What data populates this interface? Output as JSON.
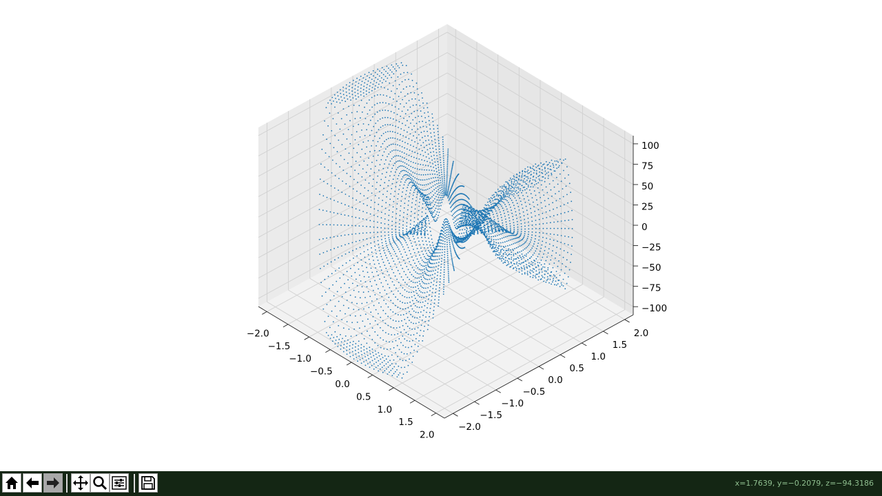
{
  "chart_data": {
    "type": "scatter",
    "title": "",
    "xlabel": "",
    "ylabel": "",
    "zlabel": "",
    "projection": "3d",
    "grid": true,
    "marker_color": "#1f77b4",
    "marker": "point",
    "xlim": [
      -2.2,
      2.2
    ],
    "ylim": [
      -2.2,
      2.2
    ],
    "zlim": [
      -110,
      110
    ],
    "x_ticks": [
      "−2.0",
      "−1.5",
      "−1.0",
      "−0.5",
      "0.0",
      "0.5",
      "1.0",
      "1.5",
      "2.0"
    ],
    "y_ticks": [
      "−2.0",
      "−1.5",
      "−1.0",
      "−0.5",
      "0.0",
      "0.5",
      "1.0",
      "1.5",
      "2.0"
    ],
    "z_ticks": [
      "−100",
      "−75",
      "−50",
      "−25",
      "0",
      "25",
      "50",
      "75",
      "100"
    ],
    "x_tick_values": [
      -2.0,
      -1.5,
      -1.0,
      -0.5,
      0.0,
      0.5,
      1.0,
      1.5,
      2.0
    ],
    "y_tick_values": [
      -2.0,
      -1.5,
      -1.0,
      -0.5,
      0.0,
      0.5,
      1.0,
      1.5,
      2.0
    ],
    "z_tick_values": [
      -100,
      -75,
      -50,
      -25,
      0,
      25,
      50,
      75,
      100
    ],
    "data_description_note": "",
    "data": {
      "polar_grid": {
        "r_range": [
          0.35,
          2.1
        ],
        "r_steps": 30,
        "theta_range_deg": [
          0,
          360
        ],
        "theta_steps": 150,
        "z_function": "40*r^2*cos(2*theta) + 25*sin(6*theta)*exp(-r)"
      }
    }
  },
  "toolbar": {
    "buttons": [
      {
        "name": "home",
        "icon": "home-icon"
      },
      {
        "name": "back",
        "icon": "arrow-left-icon"
      },
      {
        "name": "forward",
        "icon": "arrow-right-icon"
      },
      {
        "name": "pan",
        "icon": "move-icon"
      },
      {
        "name": "zoom",
        "icon": "zoom-icon"
      },
      {
        "name": "configure",
        "icon": "sliders-icon"
      },
      {
        "name": "save",
        "icon": "floppy-icon"
      }
    ],
    "coords": "x=1.7639, y=−0.2079, z=−94.3186"
  }
}
